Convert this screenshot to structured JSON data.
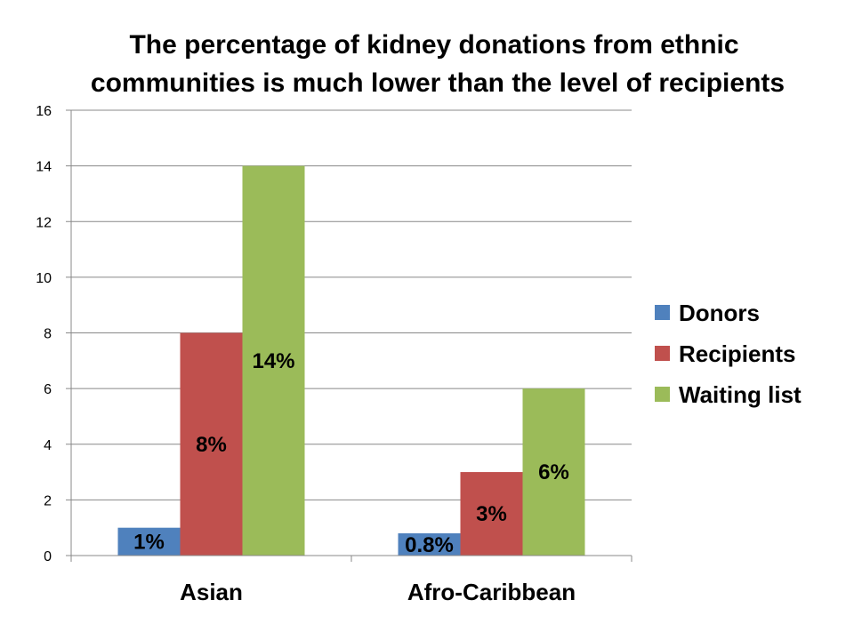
{
  "chart_data": {
    "type": "bar",
    "title_lines": [
      "The percentage of kidney donations from ethnic",
      "communities is much lower than the level of recipients"
    ],
    "categories": [
      "Asian",
      "Afro-Caribbean"
    ],
    "series": [
      {
        "name": "Donors",
        "color": "#4f81bd",
        "values": [
          1,
          0.8
        ],
        "labels": [
          "1%",
          "0.8%"
        ]
      },
      {
        "name": "Recipients",
        "color": "#c0504d",
        "values": [
          8,
          3
        ],
        "labels": [
          "8%",
          "3%"
        ]
      },
      {
        "name": "Waiting list",
        "color": "#9bbb59",
        "values": [
          14,
          6
        ],
        "labels": [
          "14%",
          "6%"
        ]
      }
    ],
    "ylim": [
      0,
      16
    ],
    "yticks": [
      0,
      2,
      4,
      6,
      8,
      10,
      12,
      14,
      16
    ],
    "grid": true,
    "legend_position": "right"
  }
}
